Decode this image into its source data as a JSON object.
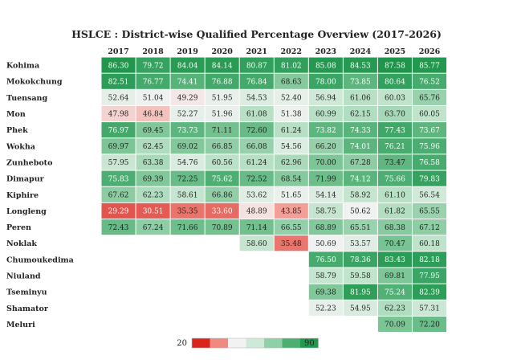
{
  "chart_data": {
    "type": "heatmap",
    "title": "HSLCE : District-wise Qualified Percentage Overview (2017-2026)",
    "years": [
      "2017",
      "2018",
      "2019",
      "2020",
      "2021",
      "2022",
      "2023",
      "2024",
      "2025",
      "2026"
    ],
    "districts": [
      "Kohima",
      "Mokokchung",
      "Tuensang",
      "Mon",
      "Phek",
      "Wokha",
      "Zunheboto",
      "Dimapur",
      "Kiphire",
      "Longleng",
      "Peren",
      "Noklak",
      "Chumoukedima",
      "Niuland",
      "Tseminyu",
      "Shamator",
      "Meluri"
    ],
    "values": [
      [
        "86.30",
        "79.72",
        "84.04",
        "84.14",
        "80.87",
        "81.02",
        "85.08",
        "84.53",
        "87.58",
        "85.77"
      ],
      [
        "82.51",
        "76.77",
        "74.41",
        "76.88",
        "76.84",
        "68.63",
        "78.00",
        "73.85",
        "80.64",
        "76.52"
      ],
      [
        "52.64",
        "51.04",
        "49.29",
        "51.95",
        "54.53",
        "52.40",
        "56.94",
        "61.06",
        "60.03",
        "65.76"
      ],
      [
        "47.98",
        "46.84",
        "52.27",
        "51.96",
        "61.08",
        "51.38",
        "60.99",
        "62.15",
        "63.70",
        "60.05"
      ],
      [
        "76.97",
        "69.45",
        "73.73",
        "71.11",
        "72.60",
        "61.24",
        "73.82",
        "74.33",
        "77.43",
        "73.67"
      ],
      [
        "69.97",
        "62.45",
        "69.02",
        "66.85",
        "66.08",
        "54.56",
        "66.20",
        "74.01",
        "76.21",
        "75.96"
      ],
      [
        "57.95",
        "63.38",
        "54.76",
        "60.56",
        "61.24",
        "62.96",
        "70.00",
        "67.28",
        "73.47",
        "76.58"
      ],
      [
        "75.83",
        "69.39",
        "72.25",
        "75.62",
        "72.52",
        "68.54",
        "71.99",
        "74.12",
        "75.66",
        "79.83"
      ],
      [
        "67.62",
        "62.23",
        "58.61",
        "66.86",
        "53.62",
        "51.65",
        "54.14",
        "58.92",
        "61.10",
        "56.54"
      ],
      [
        "29.29",
        "30.51",
        "35.35",
        "33.60",
        "48.89",
        "43.85",
        "58.75",
        "50.62",
        "61.82",
        "65.55"
      ],
      [
        "72.43",
        "67.24",
        "71.66",
        "70.89",
        "71.14",
        "66.55",
        "68.89",
        "65.51",
        "68.38",
        "67.12"
      ],
      [
        null,
        null,
        null,
        null,
        "58.60",
        "35.48",
        "50.69",
        "53.57",
        "70.47",
        "60.18"
      ],
      [
        null,
        null,
        null,
        null,
        null,
        null,
        "76.50",
        "78.36",
        "83.43",
        "82.18"
      ],
      [
        null,
        null,
        null,
        null,
        null,
        null,
        "58.79",
        "59.58",
        "69.81",
        "77.95"
      ],
      [
        null,
        null,
        null,
        null,
        null,
        null,
        "69.38",
        "81.95",
        "75.24",
        "82.39"
      ],
      [
        null,
        null,
        null,
        null,
        null,
        null,
        "52.23",
        "54.95",
        "62.23",
        "57.31"
      ],
      [
        null,
        null,
        null,
        null,
        null,
        null,
        null,
        null,
        "70.09",
        "72.20"
      ]
    ],
    "colorscale": {
      "min": 20,
      "max": 90,
      "min_label": "20",
      "max_label": "90",
      "colors": [
        "#d7261e",
        "#f08a80",
        "#f2f2f2",
        "#cfe9d8",
        "#8fd0a8",
        "#4dae72",
        "#1f9a4c"
      ]
    }
  }
}
